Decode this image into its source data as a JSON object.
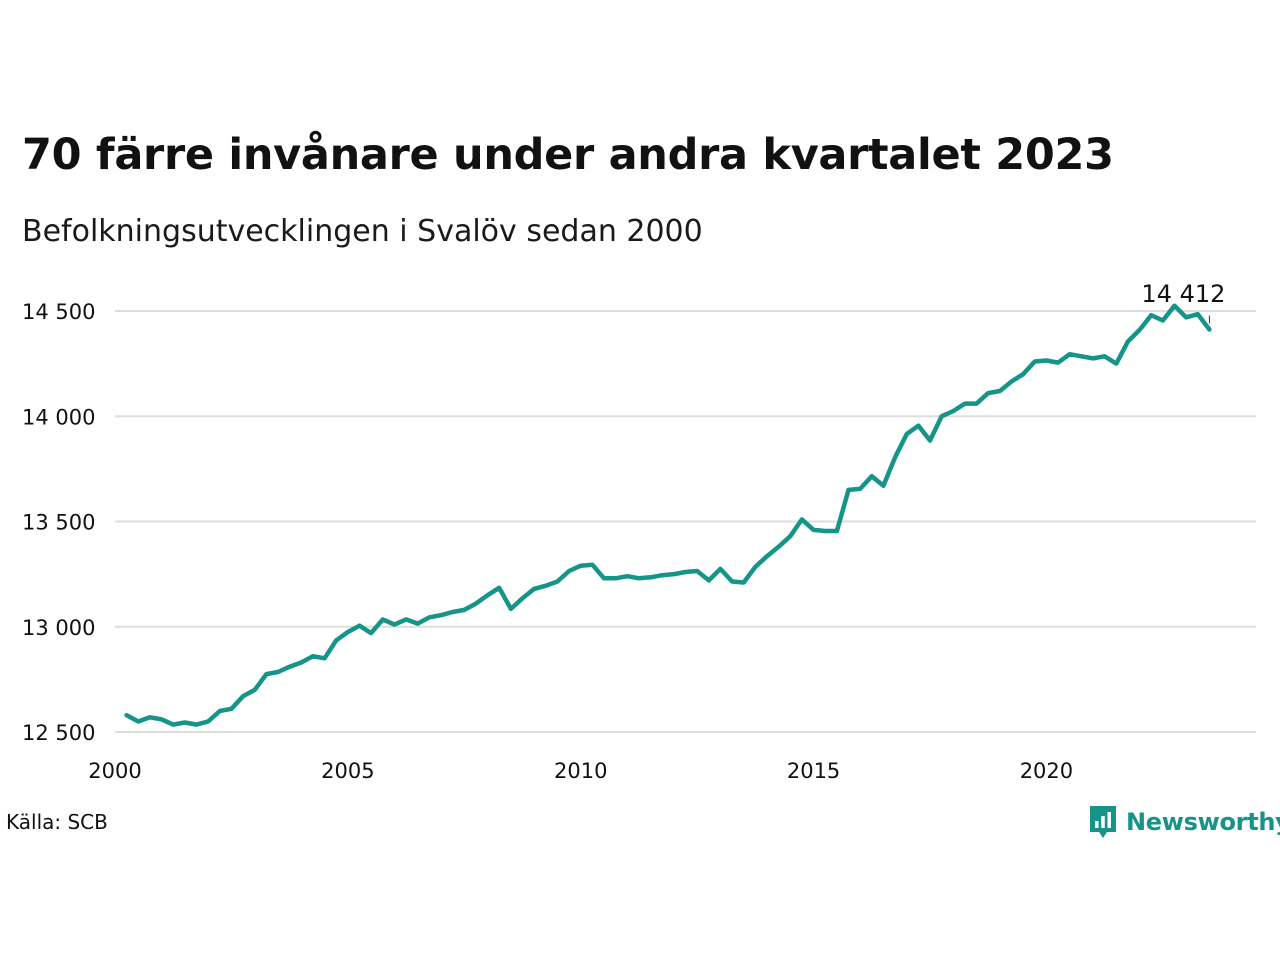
{
  "title": "70 färre invånare under andra kvartalet 2023",
  "subtitle": "Befolkningsutvecklingen i Svalöv sedan 2000",
  "source": "Källa: SCB",
  "brand": {
    "name": "Newsworthy",
    "icon": "newsworthy-chart-logo-icon",
    "color": "#15948a"
  },
  "colors": {
    "line": "#15948a",
    "grid": "#dddddd",
    "text": "#111111"
  },
  "chart_data": {
    "type": "line",
    "title": "70 färre invånare under andra kvartalet 2023",
    "subtitle": "Befolkningsutvecklingen i Svalöv sedan 2000",
    "xlabel": "",
    "ylabel": "",
    "xlim": [
      2000,
      2024.5
    ],
    "ylim": [
      12500,
      14500
    ],
    "x_ticks": [
      2000,
      2005,
      2010,
      2015,
      2020
    ],
    "x_tick_labels": [
      "2000",
      "2005",
      "2010",
      "2015",
      "2020"
    ],
    "y_ticks": [
      12500,
      13000,
      13500,
      14000,
      14500
    ],
    "y_tick_labels": [
      "12 500",
      "13 000",
      "13 500",
      "14 000",
      "14 500"
    ],
    "grid": true,
    "legend": "none",
    "end_label": "14 412",
    "series": [
      {
        "x": [
          2000.25,
          2000.5,
          2000.75,
          2001.0,
          2001.25,
          2001.5,
          2001.75,
          2002.0,
          2002.25,
          2002.5,
          2002.75,
          2003.0,
          2003.25,
          2003.5,
          2003.75,
          2004.0,
          2004.25,
          2004.5,
          2004.75,
          2005.0,
          2005.25,
          2005.5,
          2005.75,
          2006.0,
          2006.25,
          2006.5,
          2006.75,
          2007.0,
          2007.25,
          2007.5,
          2007.75,
          2008.0,
          2008.25,
          2008.5,
          2008.75,
          2009.0,
          2009.25,
          2009.5,
          2009.75,
          2010.0,
          2010.25,
          2010.5,
          2010.75,
          2011.0,
          2011.25,
          2011.5,
          2011.75,
          2012.0,
          2012.25,
          2012.5,
          2012.75,
          2013.0,
          2013.25,
          2013.5,
          2013.75,
          2014.0,
          2014.25,
          2014.5,
          2014.75,
          2015.0,
          2015.25,
          2015.5,
          2015.75,
          2016.0,
          2016.25,
          2016.5,
          2016.75,
          2017.0,
          2017.25,
          2017.5,
          2017.75,
          2018.0,
          2018.25,
          2018.5,
          2018.75,
          2019.0,
          2019.25,
          2019.5,
          2019.75,
          2020.0,
          2020.25,
          2020.5,
          2020.75,
          2021.0,
          2021.25,
          2021.5,
          2021.75,
          2022.0,
          2022.25,
          2022.5,
          2022.75,
          2023.0,
          2023.25,
          2023.5
        ],
        "values": [
          12580,
          12550,
          12570,
          12560,
          12535,
          12545,
          12535,
          12550,
          12600,
          12610,
          12670,
          12700,
          12775,
          12785,
          12810,
          12830,
          12860,
          12850,
          12935,
          12975,
          13005,
          12970,
          13035,
          13010,
          13035,
          13015,
          13045,
          13055,
          13070,
          13080,
          13110,
          13150,
          13185,
          13085,
          13135,
          13180,
          13195,
          13215,
          13265,
          13290,
          13295,
          13230,
          13230,
          13240,
          13230,
          13235,
          13245,
          13250,
          13260,
          13265,
          13220,
          13275,
          13215,
          13210,
          13285,
          13335,
          13380,
          13430,
          13510,
          13460,
          13455,
          13455,
          13650,
          13655,
          13715,
          13670,
          13805,
          13915,
          13955,
          13885,
          14000,
          14025,
          14060,
          14060,
          14110,
          14120,
          14165,
          14200,
          14260,
          14265,
          14255,
          14295,
          14285,
          14275,
          14285,
          14250,
          14355,
          14410,
          14480,
          14455,
          14525,
          14470,
          14485,
          14412
        ]
      }
    ]
  }
}
